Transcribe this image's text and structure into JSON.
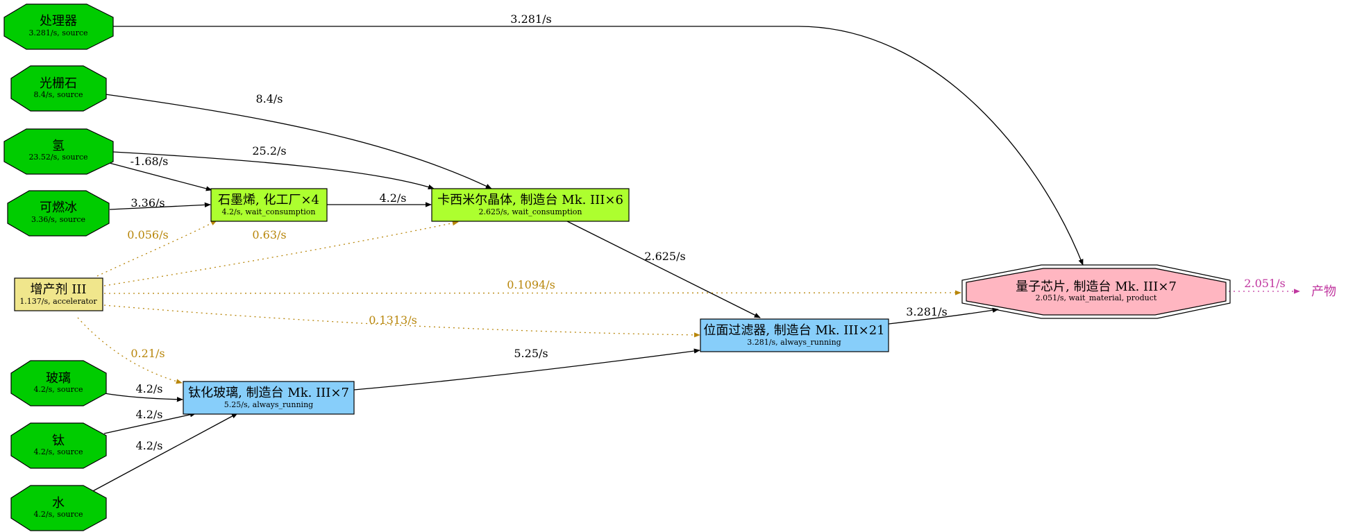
{
  "nodes": {
    "processor": {
      "title": "处理器",
      "sub": "3.281/s, source",
      "fill": "#00cc00"
    },
    "grating": {
      "title": "光栅石",
      "sub": "8.4/s, source",
      "fill": "#00cc00"
    },
    "hydrogen": {
      "title": "氢",
      "sub": "23.52/s, source",
      "fill": "#00cc00"
    },
    "fire_ice": {
      "title": "可燃冰",
      "sub": "3.36/s, source",
      "fill": "#00cc00"
    },
    "proliferator": {
      "title": "增产剂 III",
      "sub": "1.137/s, accelerator",
      "fill": "#f0e68c"
    },
    "glass": {
      "title": "玻璃",
      "sub": "4.2/s, source",
      "fill": "#00cc00"
    },
    "titanium": {
      "title": "钛",
      "sub": "4.2/s, source",
      "fill": "#00cc00"
    },
    "water": {
      "title": "水",
      "sub": "4.2/s, source",
      "fill": "#00cc00"
    },
    "graphene": {
      "title": "石墨烯, 化工厂×4",
      "sub": "4.2/s, wait_consumption",
      "fill": "#adff2f"
    },
    "casimir": {
      "title": "卡西米尔晶体, 制造台 Mk. III×6",
      "sub": "2.625/s, wait_consumption",
      "fill": "#adff2f"
    },
    "ti_glass": {
      "title": "钛化玻璃, 制造台 Mk. III×7",
      "sub": "5.25/s, always_running",
      "fill": "#87cefa"
    },
    "filter": {
      "title": "位面过滤器, 制造台 Mk. III×21",
      "sub": "3.281/s, always_running",
      "fill": "#87cefa"
    },
    "quantum": {
      "title": "量子芯片, 制造台 Mk. III×7",
      "sub": "2.051/s, wait_material, product",
      "fill": "#ffb6c1"
    },
    "output": {
      "title": "产物"
    }
  },
  "edges": {
    "processor_quantum": "3.281/s",
    "grating_casimir": "8.4/s",
    "hydrogen_casimir": "25.2/s",
    "hydrogen_graphene": "-1.68/s",
    "fireice_graphene": "3.36/s",
    "graphene_casimir": "4.2/s",
    "casimir_filter": "2.625/s",
    "filter_quantum": "3.281/s",
    "glass_tiglass": "4.2/s",
    "titanium_tiglass": "4.2/s",
    "water_tiglass": "4.2/s",
    "tiglass_filter": "5.25/s",
    "acc_graphene": "0.056/s",
    "acc_casimir": "0.63/s",
    "acc_quantum": "0.1094/s",
    "acc_filter": "0.1313/s",
    "acc_tiglass": "0.21/s",
    "quantum_output": "2.051/s"
  },
  "colors": {
    "edge": "#000000",
    "accelerator_edge": "#b8860b",
    "product_edge": "#c0369f"
  }
}
